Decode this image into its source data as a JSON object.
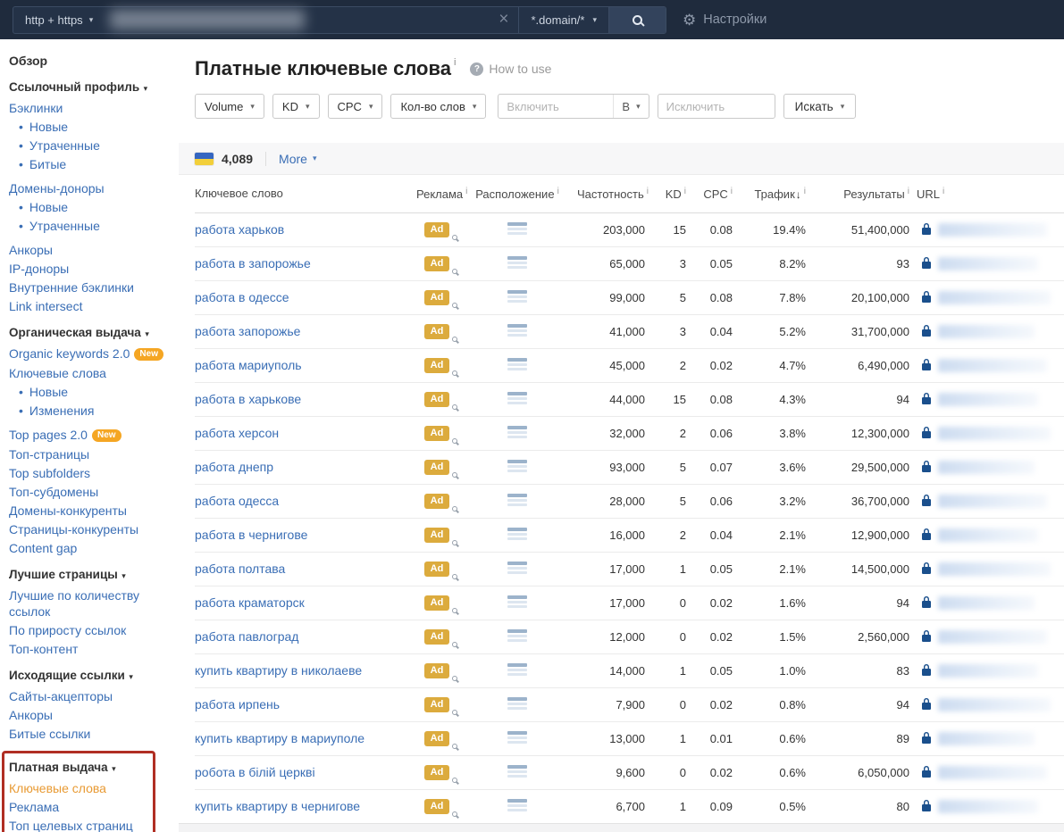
{
  "colors": {
    "topbar_bg": "#1f2b3d",
    "link_blue": "#3a6eb5",
    "active_orange": "#e89a33",
    "badge_orange": "#f5a623",
    "ad_gold": "#dcab3d",
    "highlight_red": "#b02e23",
    "lock_blue": "#1a4f8c",
    "flag_blue": "#3566c1",
    "flag_yellow": "#f2cf3a"
  },
  "topbar": {
    "protocol": "http + https",
    "mode": "*.domain/*",
    "settings": "Настройки"
  },
  "sidebar": {
    "sections": [
      {
        "items": [
          {
            "label": "Обзор",
            "strong": true
          }
        ]
      },
      {
        "header": "Ссылочный профиль",
        "items": [
          {
            "label": "Бэклинки"
          },
          {
            "label": "Новые",
            "sub": true
          },
          {
            "label": "Утраченные",
            "sub": true
          },
          {
            "label": "Битые",
            "sub": true
          },
          {
            "label": "Домены-доноры",
            "gap": true
          },
          {
            "label": "Новые",
            "sub": true
          },
          {
            "label": "Утраченные",
            "sub": true
          },
          {
            "label": "Анкоры",
            "gap": true
          },
          {
            "label": "IP-доноры"
          },
          {
            "label": "Внутренние бэклинки"
          },
          {
            "label": "Link intersect"
          }
        ]
      },
      {
        "header": "Органическая выдача",
        "items": [
          {
            "label": "Organic keywords 2.0",
            "badge": "New"
          },
          {
            "label": "Ключевые слова"
          },
          {
            "label": "Новые",
            "sub": true
          },
          {
            "label": "Изменения",
            "sub": true
          },
          {
            "label": "Top pages 2.0",
            "badge": "New",
            "gap": true
          },
          {
            "label": "Топ-страницы"
          },
          {
            "label": "Top subfolders"
          },
          {
            "label": "Топ-субдомены"
          },
          {
            "label": "Домены-конкуренты"
          },
          {
            "label": "Страницы-конкуренты"
          },
          {
            "label": "Content gap"
          }
        ]
      },
      {
        "header": "Лучшие страницы",
        "items": [
          {
            "label": "Лучшие по количеству ссылок"
          },
          {
            "label": "По приросту ссылок"
          },
          {
            "label": "Топ-контент"
          }
        ]
      },
      {
        "header": "Исходящие ссылки",
        "items": [
          {
            "label": "Сайты-акцепторы"
          },
          {
            "label": "Анкоры"
          },
          {
            "label": "Битые ссылки"
          }
        ]
      },
      {
        "header": "Платная выдача",
        "highlighted": true,
        "items": [
          {
            "label": "Ключевые слова",
            "active": true
          },
          {
            "label": "Реклама"
          },
          {
            "label": "Топ целевых страниц"
          }
        ]
      }
    ]
  },
  "page": {
    "title": "Платные ключевые слова",
    "title_info": "i",
    "how_to_use": "How to use",
    "filters": [
      "Volume",
      "KD",
      "CPC",
      "Кол-во слов"
    ],
    "include_placeholder": "Включить",
    "include_mode": "В",
    "exclude_placeholder": "Исключить",
    "search_label": "Искать"
  },
  "toolbar": {
    "count": "4,089",
    "more": "More"
  },
  "table": {
    "ad_label": "Ad",
    "info_char": "i",
    "columns": [
      {
        "label": "Ключевое слово"
      },
      {
        "label": "Реклама",
        "info": true
      },
      {
        "label": "Расположение",
        "info": true
      },
      {
        "label": "Частотность",
        "info": true
      },
      {
        "label": "KD",
        "info": true
      },
      {
        "label": "CPC",
        "info": true
      },
      {
        "label": "Трафик",
        "info": true,
        "sort": "desc"
      },
      {
        "label": "Результаты",
        "info": true
      },
      {
        "label": "URL",
        "info": true
      }
    ],
    "rows": [
      {
        "keyword": "работа харьков",
        "volume": "203,000",
        "kd": "15",
        "cpc": "0.08",
        "traffic": "19.4%",
        "results": "51,400,000"
      },
      {
        "keyword": "работа в запорожье",
        "volume": "65,000",
        "kd": "3",
        "cpc": "0.05",
        "traffic": "8.2%",
        "results": "93"
      },
      {
        "keyword": "работа в одессе",
        "volume": "99,000",
        "kd": "5",
        "cpc": "0.08",
        "traffic": "7.8%",
        "results": "20,100,000"
      },
      {
        "keyword": "работа запорожье",
        "volume": "41,000",
        "kd": "3",
        "cpc": "0.04",
        "traffic": "5.2%",
        "results": "31,700,000"
      },
      {
        "keyword": "работа мариуполь",
        "volume": "45,000",
        "kd": "2",
        "cpc": "0.02",
        "traffic": "4.7%",
        "results": "6,490,000"
      },
      {
        "keyword": "работа в харькове",
        "volume": "44,000",
        "kd": "15",
        "cpc": "0.08",
        "traffic": "4.3%",
        "results": "94"
      },
      {
        "keyword": "работа херсон",
        "volume": "32,000",
        "kd": "2",
        "cpc": "0.06",
        "traffic": "3.8%",
        "results": "12,300,000"
      },
      {
        "keyword": "работа днепр",
        "volume": "93,000",
        "kd": "5",
        "cpc": "0.07",
        "traffic": "3.6%",
        "results": "29,500,000"
      },
      {
        "keyword": "работа одесса",
        "volume": "28,000",
        "kd": "5",
        "cpc": "0.06",
        "traffic": "3.2%",
        "results": "36,700,000"
      },
      {
        "keyword": "работа в чернигове",
        "volume": "16,000",
        "kd": "2",
        "cpc": "0.04",
        "traffic": "2.1%",
        "results": "12,900,000"
      },
      {
        "keyword": "работа полтава",
        "volume": "17,000",
        "kd": "1",
        "cpc": "0.05",
        "traffic": "2.1%",
        "results": "14,500,000"
      },
      {
        "keyword": "работа краматорск",
        "volume": "17,000",
        "kd": "0",
        "cpc": "0.02",
        "traffic": "1.6%",
        "results": "94"
      },
      {
        "keyword": "работа павлоград",
        "volume": "12,000",
        "kd": "0",
        "cpc": "0.02",
        "traffic": "1.5%",
        "results": "2,560,000"
      },
      {
        "keyword": "купить квартиру в николаеве",
        "volume": "14,000",
        "kd": "1",
        "cpc": "0.05",
        "traffic": "1.0%",
        "results": "83"
      },
      {
        "keyword": "работа ирпень",
        "volume": "7,900",
        "kd": "0",
        "cpc": "0.02",
        "traffic": "0.8%",
        "results": "94"
      },
      {
        "keyword": "купить квартиру в мариуполе",
        "volume": "13,000",
        "kd": "1",
        "cpc": "0.01",
        "traffic": "0.6%",
        "results": "89"
      },
      {
        "keyword": "робота в білій церкві",
        "volume": "9,600",
        "kd": "0",
        "cpc": "0.02",
        "traffic": "0.6%",
        "results": "6,050,000"
      },
      {
        "keyword": "купить квартиру в чернигове",
        "volume": "6,700",
        "kd": "1",
        "cpc": "0.09",
        "traffic": "0.5%",
        "results": "80"
      }
    ]
  }
}
